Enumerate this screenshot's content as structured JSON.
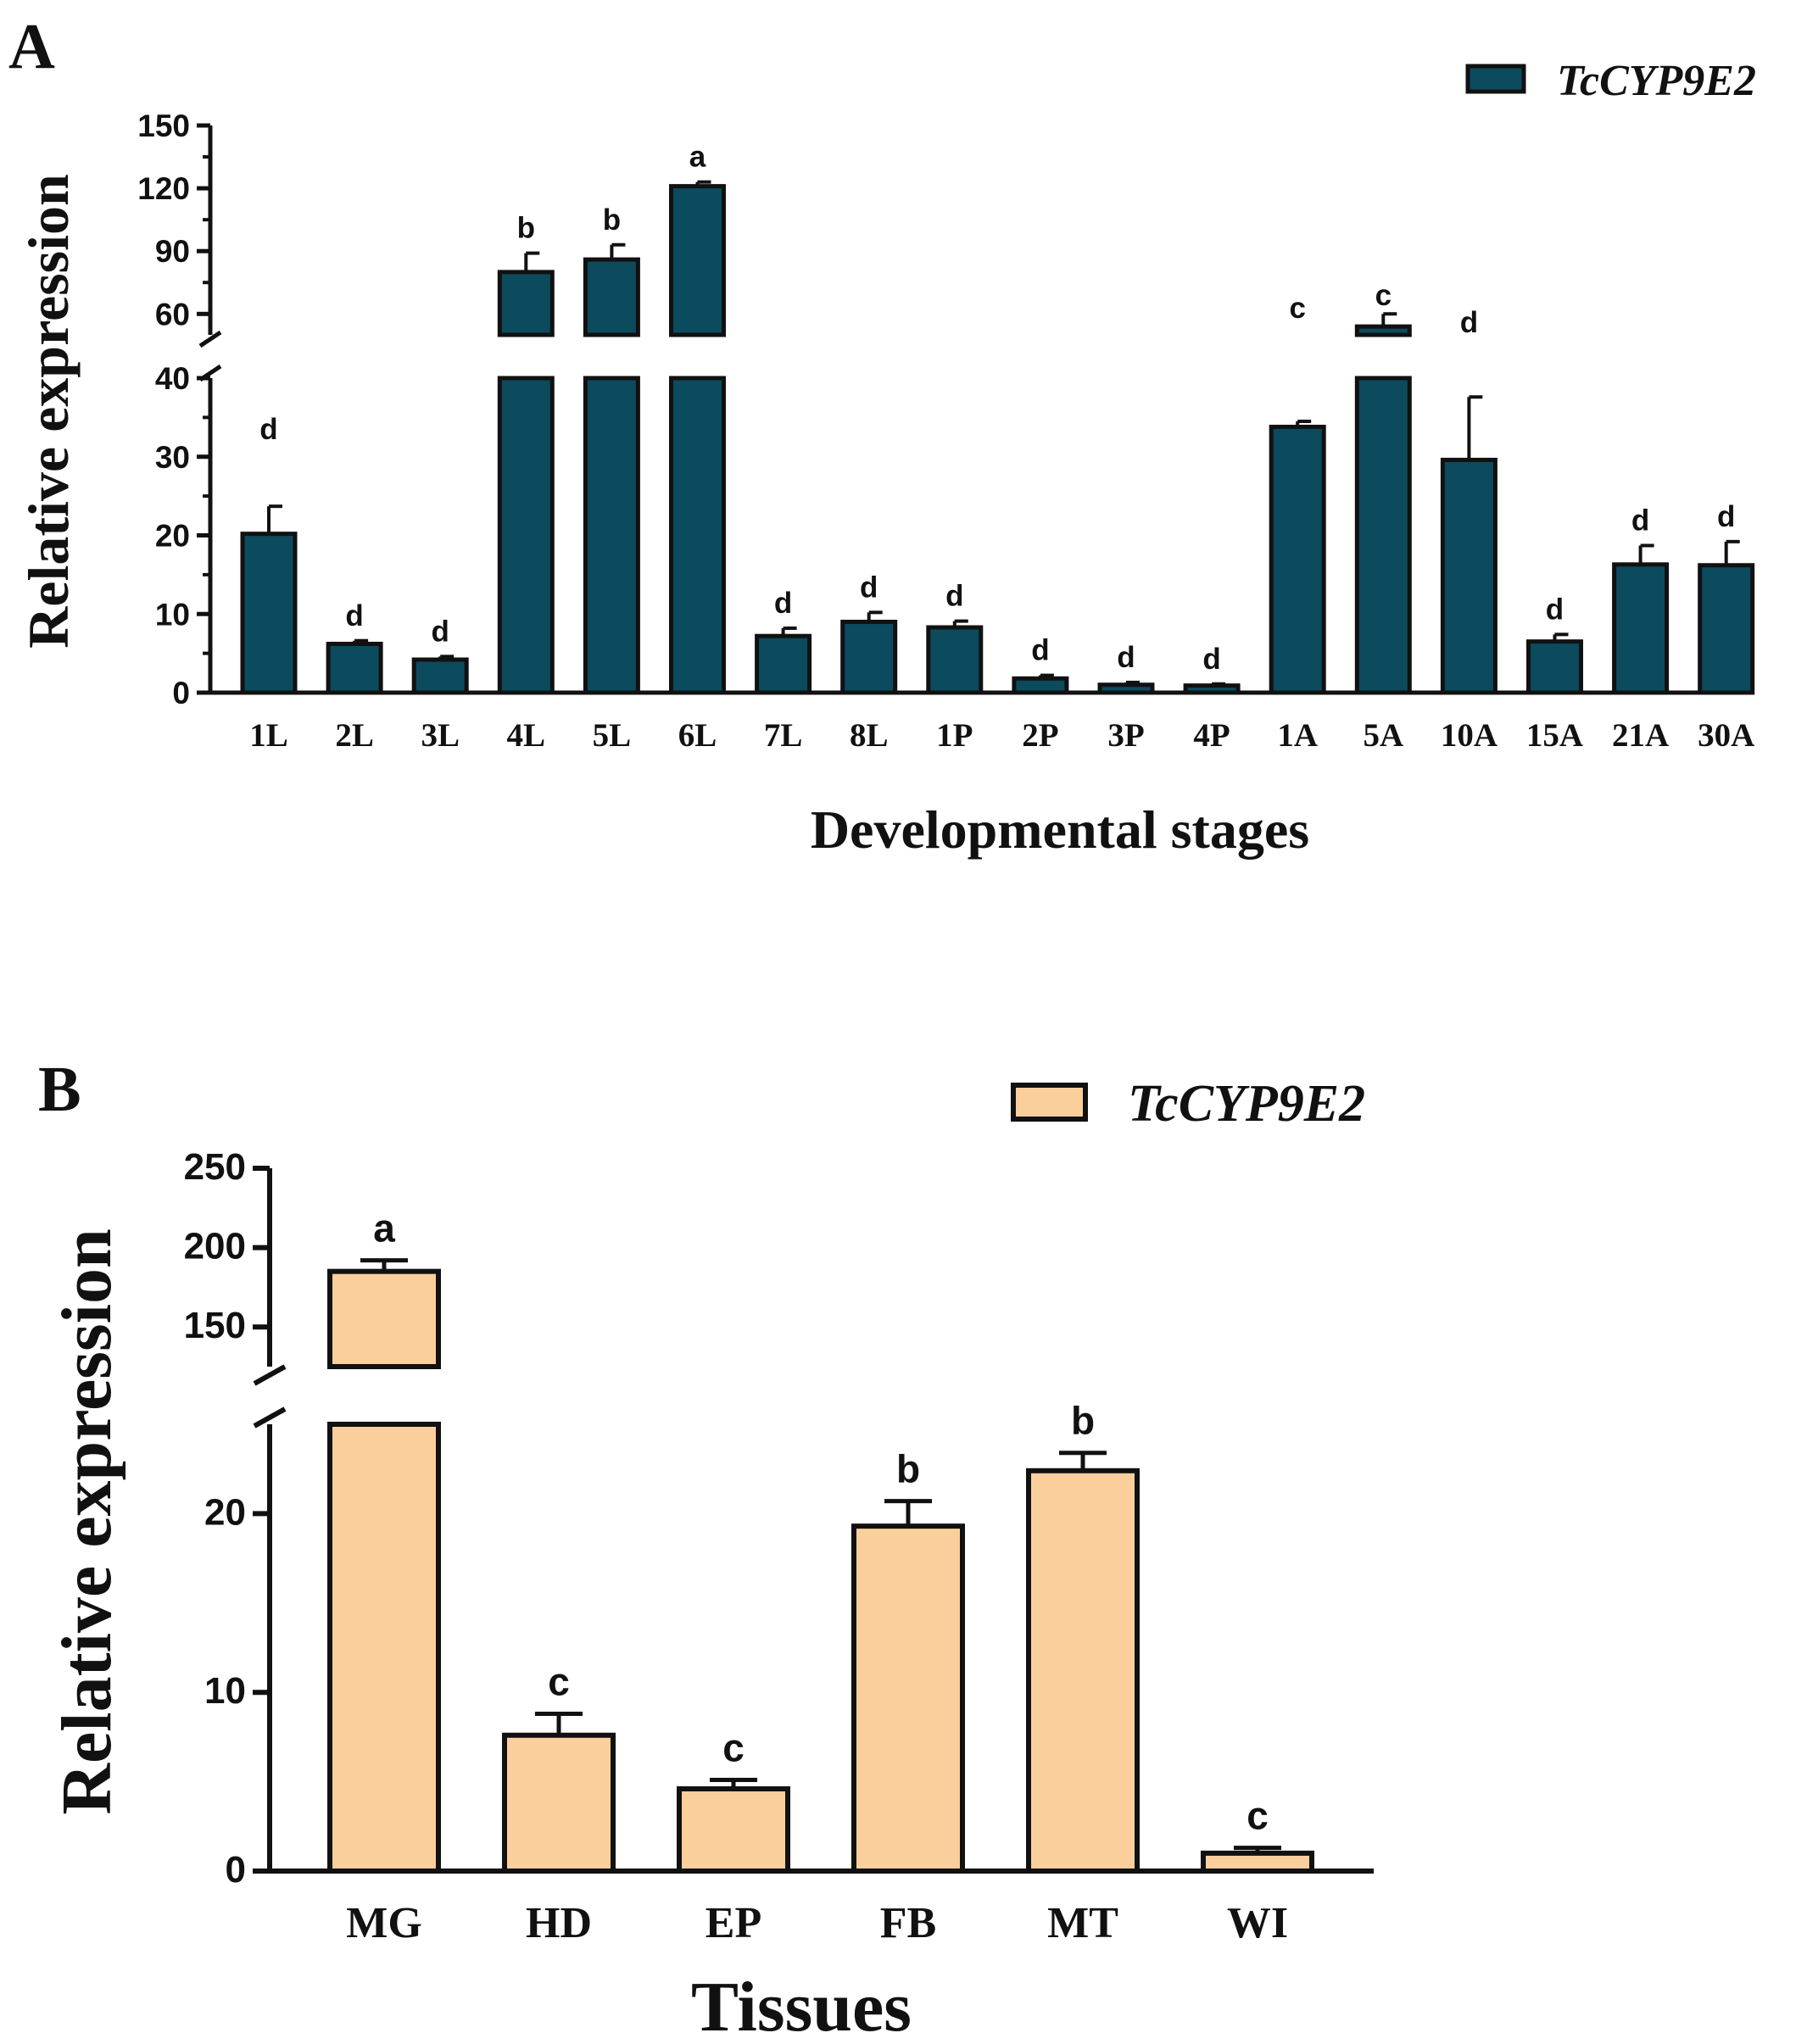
{
  "chart_data": [
    {
      "panel": "A",
      "type": "bar",
      "legend": "TcCYP9E2",
      "color": "#0c4a5e",
      "xlabel": "Developmental stages",
      "ylabel": "Relative expression",
      "categories": [
        "1L",
        "2L",
        "3L",
        "4L",
        "5L",
        "6L",
        "7L",
        "8L",
        "1P",
        "2P",
        "3P",
        "4P",
        "1A",
        "5A",
        "10A",
        "15A",
        "21A",
        "30A"
      ],
      "values": [
        20.2,
        6.2,
        4.2,
        80,
        86,
        121,
        7.2,
        9.0,
        8.3,
        1.8,
        1.0,
        0.9,
        33.8,
        54,
        29.6,
        6.5,
        16.3,
        16.2
      ],
      "errors": [
        3.5,
        0.4,
        0.4,
        9,
        7,
        2,
        1.0,
        1.2,
        0.8,
        0.4,
        0.3,
        0.2,
        0.7,
        6,
        8.0,
        0.9,
        2.4,
        3.0
      ],
      "significance": [
        "d",
        "d",
        "d",
        "b",
        "b",
        "a",
        "d",
        "d",
        "d",
        "d",
        "d",
        "d",
        "c",
        "c",
        "d",
        "d",
        "d",
        "d"
      ],
      "axis_segments": [
        {
          "range": [
            0,
            40
          ],
          "ticks": [
            "0",
            "10",
            "20",
            "30",
            "40"
          ]
        },
        {
          "range": [
            50,
            150
          ],
          "ticks": [
            "60",
            "90",
            "120",
            "150"
          ]
        }
      ],
      "ylim": [
        0,
        150
      ]
    },
    {
      "panel": "B",
      "type": "bar",
      "legend": "TcCYP9E2",
      "color": "#fbcf9c",
      "xlabel": "Tissues",
      "ylabel": "Relative expression",
      "categories": [
        "MG",
        "HD",
        "EP",
        "FB",
        "MT",
        "WI"
      ],
      "values": [
        185,
        7.6,
        4.6,
        19.3,
        22.4,
        1.0
      ],
      "errors": [
        7,
        1.2,
        0.5,
        1.4,
        1.0,
        0.3
      ],
      "significance": [
        "a",
        "c",
        "c",
        "b",
        "b",
        "c"
      ],
      "axis_segments": [
        {
          "range": [
            0,
            25
          ],
          "ticks": [
            "0",
            "10",
            "20"
          ]
        },
        {
          "range": [
            125,
            250
          ],
          "ticks": [
            "150",
            "200",
            "250"
          ]
        }
      ],
      "ylim": [
        0,
        250
      ]
    }
  ]
}
